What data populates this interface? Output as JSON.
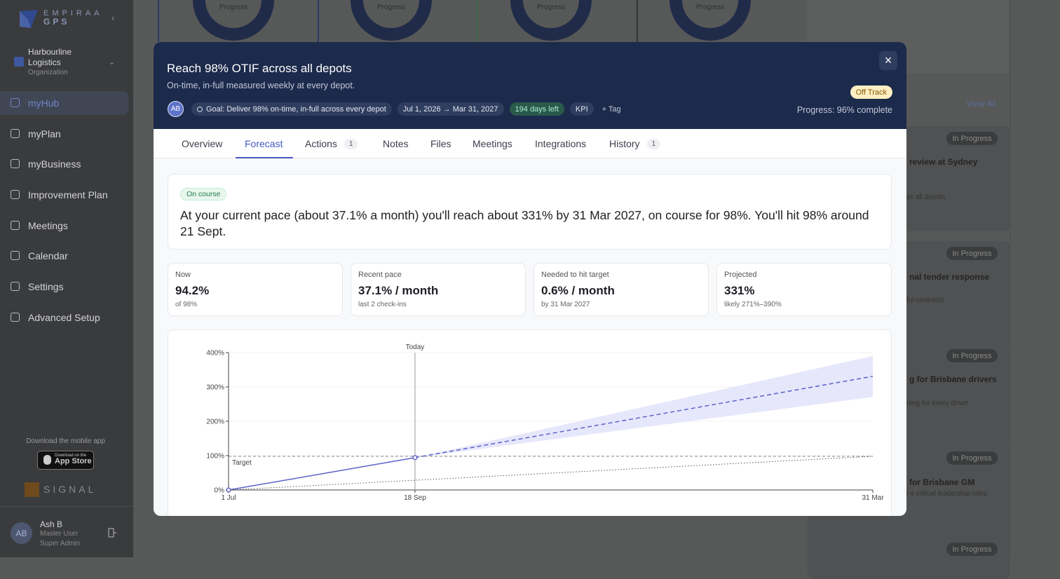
{
  "sidebar": {
    "brand": {
      "name": "EMPIRAA",
      "product": "GPS"
    },
    "organization": {
      "name": "Harbourline Logistics",
      "type": "Organization"
    },
    "nav": [
      "myHub",
      "myPlan",
      "myBusiness",
      "Improvement Plan",
      "Meetings",
      "Calendar",
      "Settings",
      "Advanced Setup"
    ],
    "mobile": {
      "prompt": "Download the mobile app",
      "badge_small": "Download on the",
      "badge_large": "App Store"
    },
    "partner": "SIGNAL",
    "user": {
      "initials": "AB",
      "name": "Ash B",
      "role": "Master User",
      "access": "Super Admin"
    }
  },
  "background": {
    "progress_labels": [
      "Progress",
      "Progress",
      "Progress",
      "Progress"
    ],
    "view_all": "View All",
    "cards": [
      {
        "status": "In Progress",
        "title": "review at Sydney",
        "detail": "ss all depots"
      },
      {
        "status": "In Progress",
        "title": "nal tender response",
        "detail": "ful contracts"
      },
      {
        "status": "In Progress",
        "title": "g for Brisbane drivers",
        "detail": "ning for every driver"
      },
      {
        "status": "In Progress",
        "title": "for Brisbane GM",
        "detail": "l 4 critical leadership roles"
      },
      {
        "status": "In Progress"
      }
    ]
  },
  "modal": {
    "title": "Reach 98% OTIF across all depots",
    "subtitle": "On-time, in-full measured weekly at every depot.",
    "owner": "AB",
    "chips": [
      "Goal: Deliver 98% on-time, in-full across every depot",
      "Jul 1, 2026 → Mar 31, 2027",
      "194 days left",
      "KPI",
      "+ Tag"
    ],
    "close": "×",
    "status": "Off Track",
    "progress": "Progress: 96% complete",
    "tabs": [
      {
        "label": "Overview"
      },
      {
        "label": "Forecast"
      },
      {
        "label": "Actions",
        "count": "1"
      },
      {
        "label": "Notes"
      },
      {
        "label": "Files"
      },
      {
        "label": "Meetings"
      },
      {
        "label": "Integrations"
      },
      {
        "label": "History",
        "count": "1"
      }
    ],
    "forecast": {
      "badge": "On course",
      "summary": "At your current pace (about 37.1% a month) you'll reach about 331% by 31 Mar 2027, on course for 98%. You'll hit 98% around 21 Sept."
    },
    "stats": [
      {
        "label": "Now",
        "value": "94.2%",
        "note": "of 98%"
      },
      {
        "label": "Recent pace",
        "value": "37.1% / month",
        "note": "last 2 check-ins"
      },
      {
        "label": "Needed to hit target",
        "value": "0.6% / month",
        "note": "by 31 Mar 2027"
      },
      {
        "label": "Projected",
        "value": "331%",
        "note": "likely 271%–390%"
      }
    ]
  },
  "chart_data": {
    "type": "line",
    "xlim": [
      "2026-07-01",
      "2027-03-31"
    ],
    "xticks": [
      {
        "value": "2026-07-01",
        "label": "1 Jul"
      },
      {
        "value": "2026-09-18",
        "label": "18 Sep"
      },
      {
        "value": "2027-03-31",
        "label": "31 Mar"
      }
    ],
    "ylim": [
      0,
      400
    ],
    "yticks": [
      {
        "value": 0,
        "label": "0%"
      },
      {
        "value": 100,
        "label": "100%"
      },
      {
        "value": 200,
        "label": "200%"
      },
      {
        "value": 300,
        "label": "300%"
      },
      {
        "value": 400,
        "label": "400%"
      }
    ],
    "grid": true,
    "series": [
      {
        "color": "#5c60c9",
        "style": "solid",
        "markers": true,
        "x": [
          "2026-07-01",
          "2026-09-18"
        ],
        "values": [
          0,
          94.2
        ]
      },
      {
        "color": "#5c60c9",
        "style": "dashed",
        "x": [
          "2026-09-18",
          "2027-03-31"
        ],
        "values": [
          94.2,
          331
        ]
      },
      {
        "color": "#555555",
        "style": "dotted",
        "x": [
          "2026-07-01",
          "2027-03-31"
        ],
        "values": [
          0,
          98
        ]
      }
    ],
    "band": {
      "color": "#e3e4fb",
      "x": [
        "2026-09-18",
        "2027-03-31"
      ],
      "lower": [
        94.2,
        271
      ],
      "upper": [
        94.2,
        390
      ]
    },
    "target": {
      "value": 98,
      "label": "Target"
    },
    "today": {
      "x": "2026-09-18",
      "label": "Today"
    }
  }
}
